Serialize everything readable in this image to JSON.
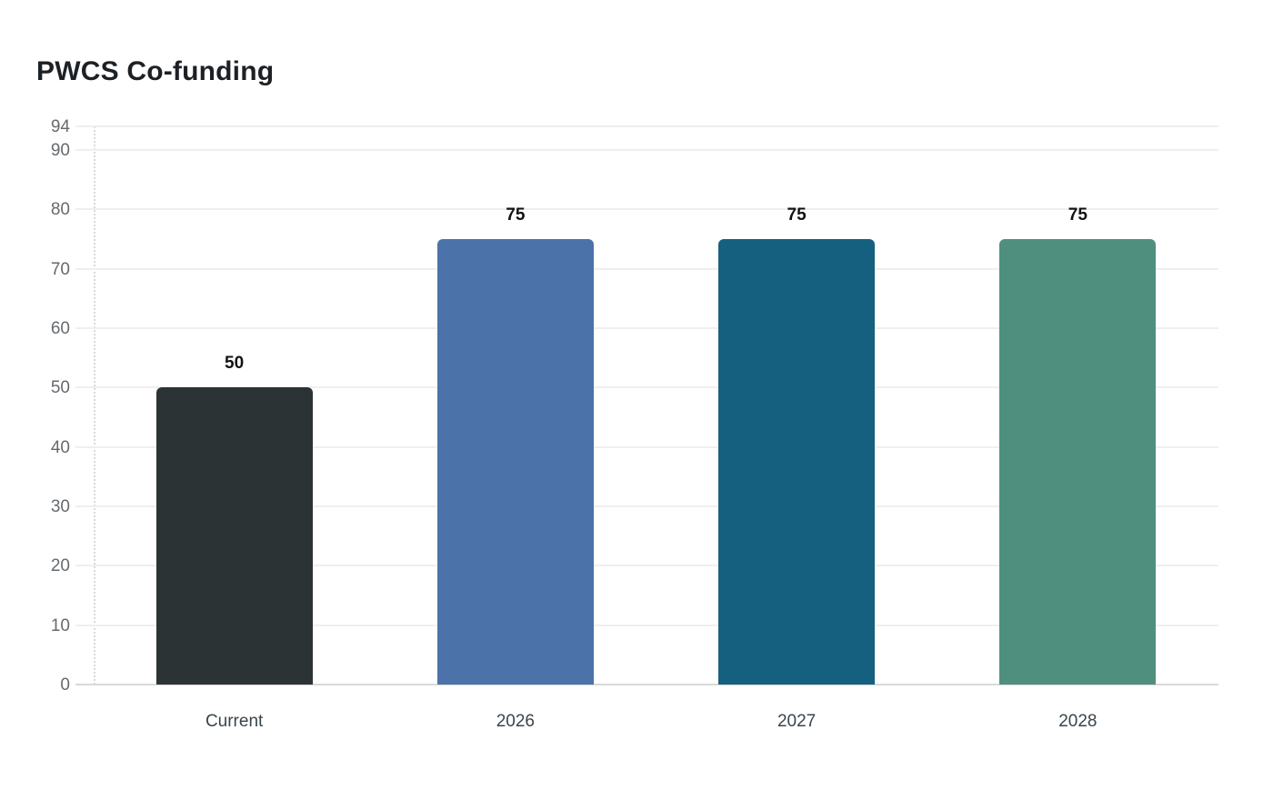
{
  "page": {
    "background": "#ffffff"
  },
  "chart_data": {
    "type": "bar",
    "title": "PWCS Co-funding",
    "categories": [
      "Current",
      "2026",
      "2027",
      "2028"
    ],
    "values": [
      50,
      75,
      75,
      75
    ],
    "value_labels": [
      "50",
      "75",
      "75",
      "75"
    ],
    "bar_colors": [
      "#2c3335",
      "#4c73a9",
      "#16607f",
      "#4f8f7e"
    ],
    "yticks": [
      0,
      10,
      20,
      30,
      40,
      50,
      60,
      70,
      80,
      90,
      94
    ],
    "ylim": [
      0,
      94
    ],
    "xlabel": "",
    "ylabel": "",
    "grid": "horizontal",
    "legend": "none",
    "colors": {
      "gridline": "#efefef",
      "baseline": "#d9d9d9",
      "axis_dotted": "#d9d9d9",
      "y_tick_label": "#666a6e",
      "x_tick_label": "#3a444b",
      "value_label": "#101214",
      "title": "#1c2126"
    }
  }
}
